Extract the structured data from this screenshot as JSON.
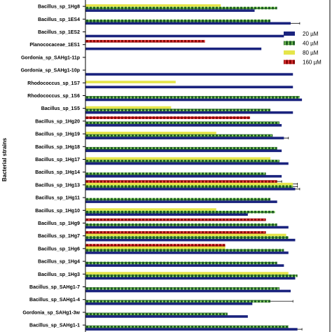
{
  "chart_data": {
    "type": "bar",
    "orientation": "horizontal",
    "title": "",
    "xlabel": "",
    "ylabel": "Bacterial strains",
    "xlim": [
      0,
      100
    ],
    "grid": false,
    "legend_position": "top-right",
    "categories": [
      "Bacillus_sp_1Hg8",
      "Bacillus_sp_1ES4",
      "Bacillus_sp_1ES2",
      "Planococaceae_1ES1",
      "Gordonia_sp_SAHg1-11p",
      "Gordonia_sp_SAHg1-10p",
      "Rhodococcus_sp_1S7",
      "Rhodococcus_sp_1S6",
      "Bacillus_sp_1S5",
      "Bacillus_sp_1Hg20",
      "Bacillus_sp_1Hg19",
      "Bacillus_sp_1Hg18",
      "Bacillus_sp_1Hg17",
      "Bacillus_sp_1Hg14",
      "Bacillus_sp_1Hg13",
      "Bacillus_sp_1Hg11",
      "Bacillus_sp_1Hg10",
      "Bacillus_sp_1Hg9",
      "Bacillus_sp_1Hg7",
      "Bacillus_sp_1Hg6",
      "Bacillus_sp_1Hg4",
      "Bacillus_sp_1Hg3",
      "Bacillus_sp_SAHg1-7",
      "Bacillus_sp_SAHg1-4",
      "Gordonia_sp_SAHg1-3w",
      "Bacillus_sp_SAHg1-1"
    ],
    "series": [
      {
        "name": "20 µM",
        "color": "#1a237e",
        "pattern": "solid",
        "values": [
          75,
          91,
          88,
          78,
          0,
          92,
          92,
          96,
          92,
          87,
          88,
          87,
          90,
          87,
          93,
          85,
          72,
          90,
          93,
          90,
          88,
          93,
          91,
          74,
          72,
          94
        ],
        "errors": [
          0,
          4,
          0,
          0,
          0,
          0,
          0,
          0,
          0,
          0,
          2,
          0,
          0,
          0,
          2,
          0,
          0,
          0,
          0,
          0,
          0,
          0,
          0,
          0,
          0,
          2
        ]
      },
      {
        "name": "40 µM",
        "color": "#2e7d32",
        "pattern": "dots",
        "values": [
          85,
          82,
          0,
          0,
          0,
          0,
          0,
          95,
          82,
          86,
          83,
          85,
          86,
          80,
          92,
          82,
          84,
          85,
          90,
          88,
          85,
          94,
          86,
          82,
          63,
          90
        ],
        "errors": [
          0,
          0,
          0,
          0,
          0,
          0,
          0,
          0,
          0,
          0,
          0,
          0,
          0,
          0,
          2,
          0,
          0,
          0,
          0,
          0,
          0,
          0,
          0,
          10,
          0,
          0
        ]
      },
      {
        "name": "80 µM",
        "color": "#e5e54a",
        "pattern": "solid",
        "values": [
          60,
          0,
          0,
          0,
          0,
          0,
          40,
          0,
          38,
          0,
          58,
          0,
          82,
          0,
          92,
          0,
          58,
          0,
          89,
          62,
          0,
          90,
          0,
          0,
          0,
          0
        ],
        "errors": [
          0,
          0,
          0,
          0,
          0,
          0,
          0,
          0,
          0,
          0,
          0,
          0,
          0,
          0,
          2,
          0,
          0,
          0,
          0,
          0,
          0,
          0,
          0,
          0,
          0,
          0
        ]
      },
      {
        "name": "160 µM",
        "color": "#d32f2f",
        "pattern": "dots",
        "values": [
          0,
          0,
          0,
          53,
          0,
          0,
          0,
          0,
          0,
          73,
          0,
          0,
          0,
          0,
          85,
          0,
          0,
          80,
          80,
          62,
          0,
          0,
          0,
          0,
          0,
          0
        ],
        "errors": [
          0,
          0,
          0,
          0,
          0,
          0,
          0,
          0,
          0,
          0,
          0,
          0,
          0,
          0,
          2,
          0,
          0,
          0,
          0,
          0,
          0,
          0,
          0,
          0,
          0,
          0
        ]
      }
    ]
  }
}
